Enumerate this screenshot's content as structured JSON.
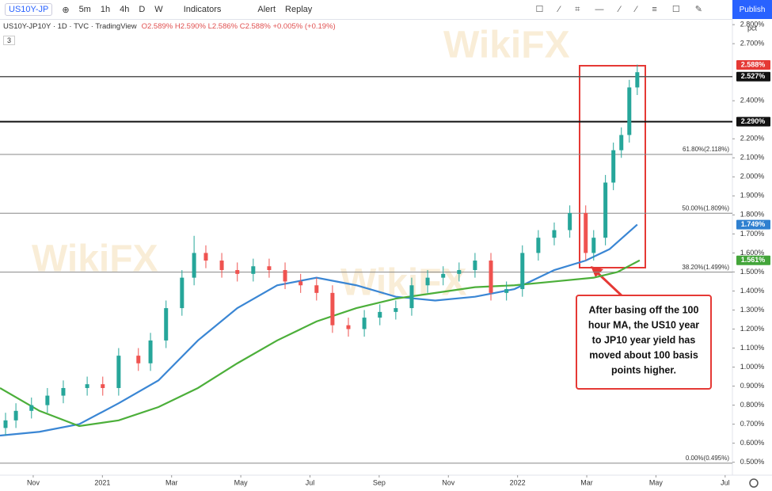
{
  "toolbar": {
    "symbol": "US10Y-JP",
    "intervals": [
      "5m",
      "1h",
      "4h",
      "D",
      "W"
    ],
    "indicators": "Indicators",
    "alert": "Alert",
    "replay": "Replay",
    "publish": "Publish"
  },
  "legend": {
    "title": "US10Y-JP10Y · 1D · TVC · TradingView",
    "ohlc": "O2.589% H2.590% L2.586% C2.588% +0.005% (+0.19%)",
    "collapse": "3"
  },
  "watermark": "WikiFX",
  "chart_data": {
    "type": "candlestick",
    "axis_unit": "pct",
    "xlim": [
      0.04,
      21.21
    ],
    "xticks": [
      {
        "value": 1,
        "label": "Nov"
      },
      {
        "value": 3,
        "label": "2021"
      },
      {
        "value": 5,
        "label": "Mar"
      },
      {
        "value": 7,
        "label": "May"
      },
      {
        "value": 9,
        "label": "Jul"
      },
      {
        "value": 11,
        "label": "Sep"
      },
      {
        "value": 13,
        "label": "Nov"
      },
      {
        "value": 15,
        "label": "2022"
      },
      {
        "value": 17,
        "label": "Mar"
      },
      {
        "value": 19,
        "label": "May"
      },
      {
        "value": 21,
        "label": "Jul"
      }
    ],
    "ylim": [
      0.432,
      2.838
    ],
    "yticks": [
      {
        "value": 0.5,
        "label": "0.500%"
      },
      {
        "value": 0.6,
        "label": "0.600%"
      },
      {
        "value": 0.7,
        "label": "0.700%"
      },
      {
        "value": 0.8,
        "label": "0.800%"
      },
      {
        "value": 0.9,
        "label": "0.900%"
      },
      {
        "value": 1.0,
        "label": "1.000%"
      },
      {
        "value": 1.1,
        "label": "1.100%"
      },
      {
        "value": 1.2,
        "label": "1.200%"
      },
      {
        "value": 1.3,
        "label": "1.300%"
      },
      {
        "value": 1.4,
        "label": "1.400%"
      },
      {
        "value": 1.5,
        "label": "1.500%"
      },
      {
        "value": 1.6,
        "label": "1.600%"
      },
      {
        "value": 1.7,
        "label": "1.700%"
      },
      {
        "value": 1.8,
        "label": "1.800%"
      },
      {
        "value": 1.9,
        "label": "1.900%"
      },
      {
        "value": 2.0,
        "label": "2.000%"
      },
      {
        "value": 2.1,
        "label": "2.100%"
      },
      {
        "value": 2.2,
        "label": "2.200%"
      },
      {
        "value": 2.4,
        "label": "2.400%"
      },
      {
        "value": 2.7,
        "label": "2.700%"
      },
      {
        "value": 2.8,
        "label": "2.800%"
      }
    ],
    "up_color": "#26a69a",
    "down_color": "#ef5350",
    "x": [
      0.2,
      0.5,
      0.95,
      1.41,
      1.87,
      2.56,
      3.01,
      3.47,
      4.04,
      4.39,
      4.84,
      5.3,
      5.65,
      5.99,
      6.45,
      6.9,
      7.36,
      7.82,
      8.28,
      8.73,
      9.19,
      9.65,
      10.11,
      10.57,
      11.02,
      11.48,
      11.94,
      12.4,
      12.85,
      13.31,
      13.77,
      14.23,
      14.68,
      15.14,
      15.6,
      16.06,
      16.51,
      16.97,
      17.2,
      17.54,
      17.77,
      18.0,
      18.23,
      18.46
    ],
    "open": [
      0.68,
      0.72,
      0.77,
      0.8,
      0.85,
      0.89,
      0.91,
      0.89,
      1.06,
      1.02,
      1.14,
      1.31,
      1.47,
      1.6,
      1.56,
      1.51,
      1.49,
      1.53,
      1.51,
      1.45,
      1.43,
      1.39,
      1.22,
      1.2,
      1.26,
      1.29,
      1.31,
      1.43,
      1.47,
      1.49,
      1.51,
      1.56,
      1.39,
      1.41,
      1.6,
      1.68,
      1.72,
      1.81,
      1.6,
      1.68,
      1.97,
      2.14,
      2.22,
      2.47
    ],
    "high": [
      0.76,
      0.81,
      0.84,
      0.89,
      0.93,
      0.95,
      0.95,
      1.1,
      1.1,
      1.18,
      1.35,
      1.51,
      1.69,
      1.64,
      1.6,
      1.55,
      1.57,
      1.57,
      1.55,
      1.49,
      1.47,
      1.43,
      1.26,
      1.3,
      1.33,
      1.35,
      1.47,
      1.51,
      1.53,
      1.55,
      1.6,
      1.6,
      1.45,
      1.64,
      1.72,
      1.76,
      1.85,
      1.85,
      1.72,
      2.01,
      2.18,
      2.26,
      2.51,
      2.59
    ],
    "low": [
      0.64,
      0.68,
      0.73,
      0.76,
      0.81,
      0.85,
      0.85,
      0.85,
      0.98,
      0.98,
      1.1,
      1.27,
      1.43,
      1.52,
      1.47,
      1.45,
      1.45,
      1.47,
      1.41,
      1.39,
      1.35,
      1.18,
      1.16,
      1.16,
      1.22,
      1.25,
      1.27,
      1.39,
      1.43,
      1.45,
      1.47,
      1.35,
      1.35,
      1.37,
      1.56,
      1.64,
      1.68,
      1.56,
      1.56,
      1.64,
      1.93,
      2.1,
      2.18,
      2.43
    ],
    "close": [
      0.72,
      0.77,
      0.8,
      0.85,
      0.89,
      0.91,
      0.89,
      1.06,
      1.02,
      1.14,
      1.31,
      1.47,
      1.6,
      1.56,
      1.51,
      1.49,
      1.53,
      1.51,
      1.45,
      1.43,
      1.39,
      1.22,
      1.2,
      1.26,
      1.29,
      1.31,
      1.43,
      1.47,
      1.49,
      1.51,
      1.56,
      1.39,
      1.41,
      1.6,
      1.68,
      1.72,
      1.81,
      1.6,
      1.68,
      1.97,
      2.14,
      2.22,
      2.47,
      2.55
    ],
    "moving_averages": [
      {
        "color": "#3a86d4",
        "x": [
          0.04,
          1.18,
          2.33,
          3.47,
          4.62,
          5.76,
          6.9,
          8.05,
          9.19,
          10.34,
          11.48,
          12.62,
          13.77,
          14.91,
          16.06,
          16.97,
          17.66,
          18.46
        ],
        "values": [
          0.64,
          0.66,
          0.7,
          0.81,
          0.93,
          1.14,
          1.31,
          1.43,
          1.47,
          1.43,
          1.37,
          1.35,
          1.37,
          1.41,
          1.51,
          1.56,
          1.62,
          1.749
        ]
      },
      {
        "color": "#4caf3a",
        "x": [
          0.04,
          1.18,
          2.33,
          3.47,
          4.62,
          5.76,
          6.9,
          8.05,
          9.19,
          10.34,
          11.48,
          12.62,
          13.77,
          14.91,
          16.06,
          17.2,
          17.89,
          18.53
        ],
        "values": [
          0.89,
          0.77,
          0.69,
          0.72,
          0.79,
          0.89,
          1.02,
          1.14,
          1.24,
          1.31,
          1.36,
          1.39,
          1.42,
          1.43,
          1.45,
          1.47,
          1.5,
          1.561
        ]
      }
    ],
    "levels": [
      {
        "value": 2.527,
        "color": "#555555",
        "width": 1.5
      },
      {
        "value": 2.29,
        "color": "#111111",
        "width": 2
      }
    ],
    "fib_levels": [
      {
        "value": 2.118,
        "label": "61.80%(2.118%)"
      },
      {
        "value": 1.809,
        "label": "50.00%(1.809%)"
      },
      {
        "value": 1.499,
        "label": "38.20%(1.499%)"
      },
      {
        "value": 0.495,
        "label": "0.00%(0.495%)"
      }
    ],
    "price_labels": [
      {
        "value": 2.588,
        "label": "2.588%",
        "color": "#e53935"
      },
      {
        "value": 2.527,
        "label": "2.527%",
        "color": "#111111"
      },
      {
        "value": 2.29,
        "label": "2.290%",
        "color": "#111111"
      },
      {
        "value": 1.749,
        "label": "1.749%",
        "color": "#2f80d0"
      },
      {
        "value": 1.561,
        "label": "1.561%",
        "color": "#43a53a"
      }
    ],
    "annotation": {
      "lines": [
        "After basing off the 100",
        "hour MA, the US10 year",
        "to JP10 year yield has",
        "moved about 100 basis",
        "points higher."
      ]
    }
  }
}
